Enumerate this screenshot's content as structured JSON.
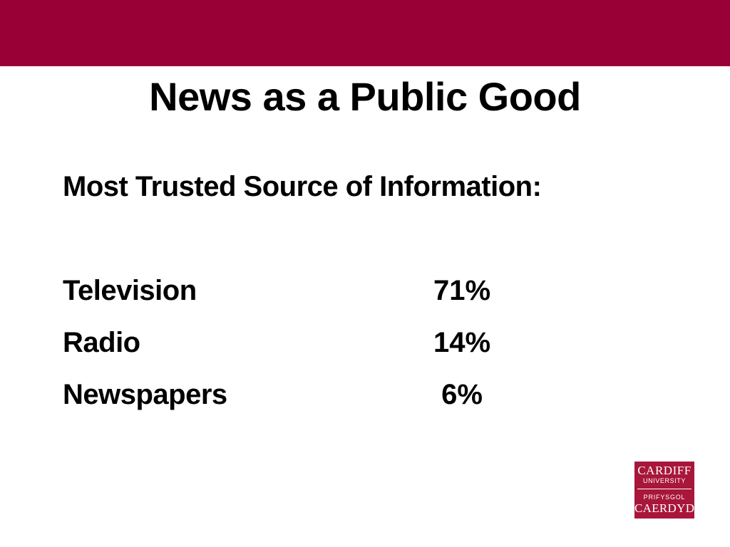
{
  "slide": {
    "title": "News as a Public Good",
    "subtitle": "Most Trusted Source of Information:",
    "stats": [
      {
        "label": "Television",
        "value": "71%"
      },
      {
        "label": "Radio",
        "value": "14%"
      },
      {
        "label": "Newspapers",
        "value": "6%"
      }
    ]
  },
  "logo": {
    "line1": "CARDIFF",
    "line2": "UNIVERSITY",
    "line3": "PRIFYSGOL",
    "line4": "CAERDYD"
  },
  "colors": {
    "header_band": "#990036",
    "logo_background": "#a8163a",
    "text": "#000000"
  }
}
